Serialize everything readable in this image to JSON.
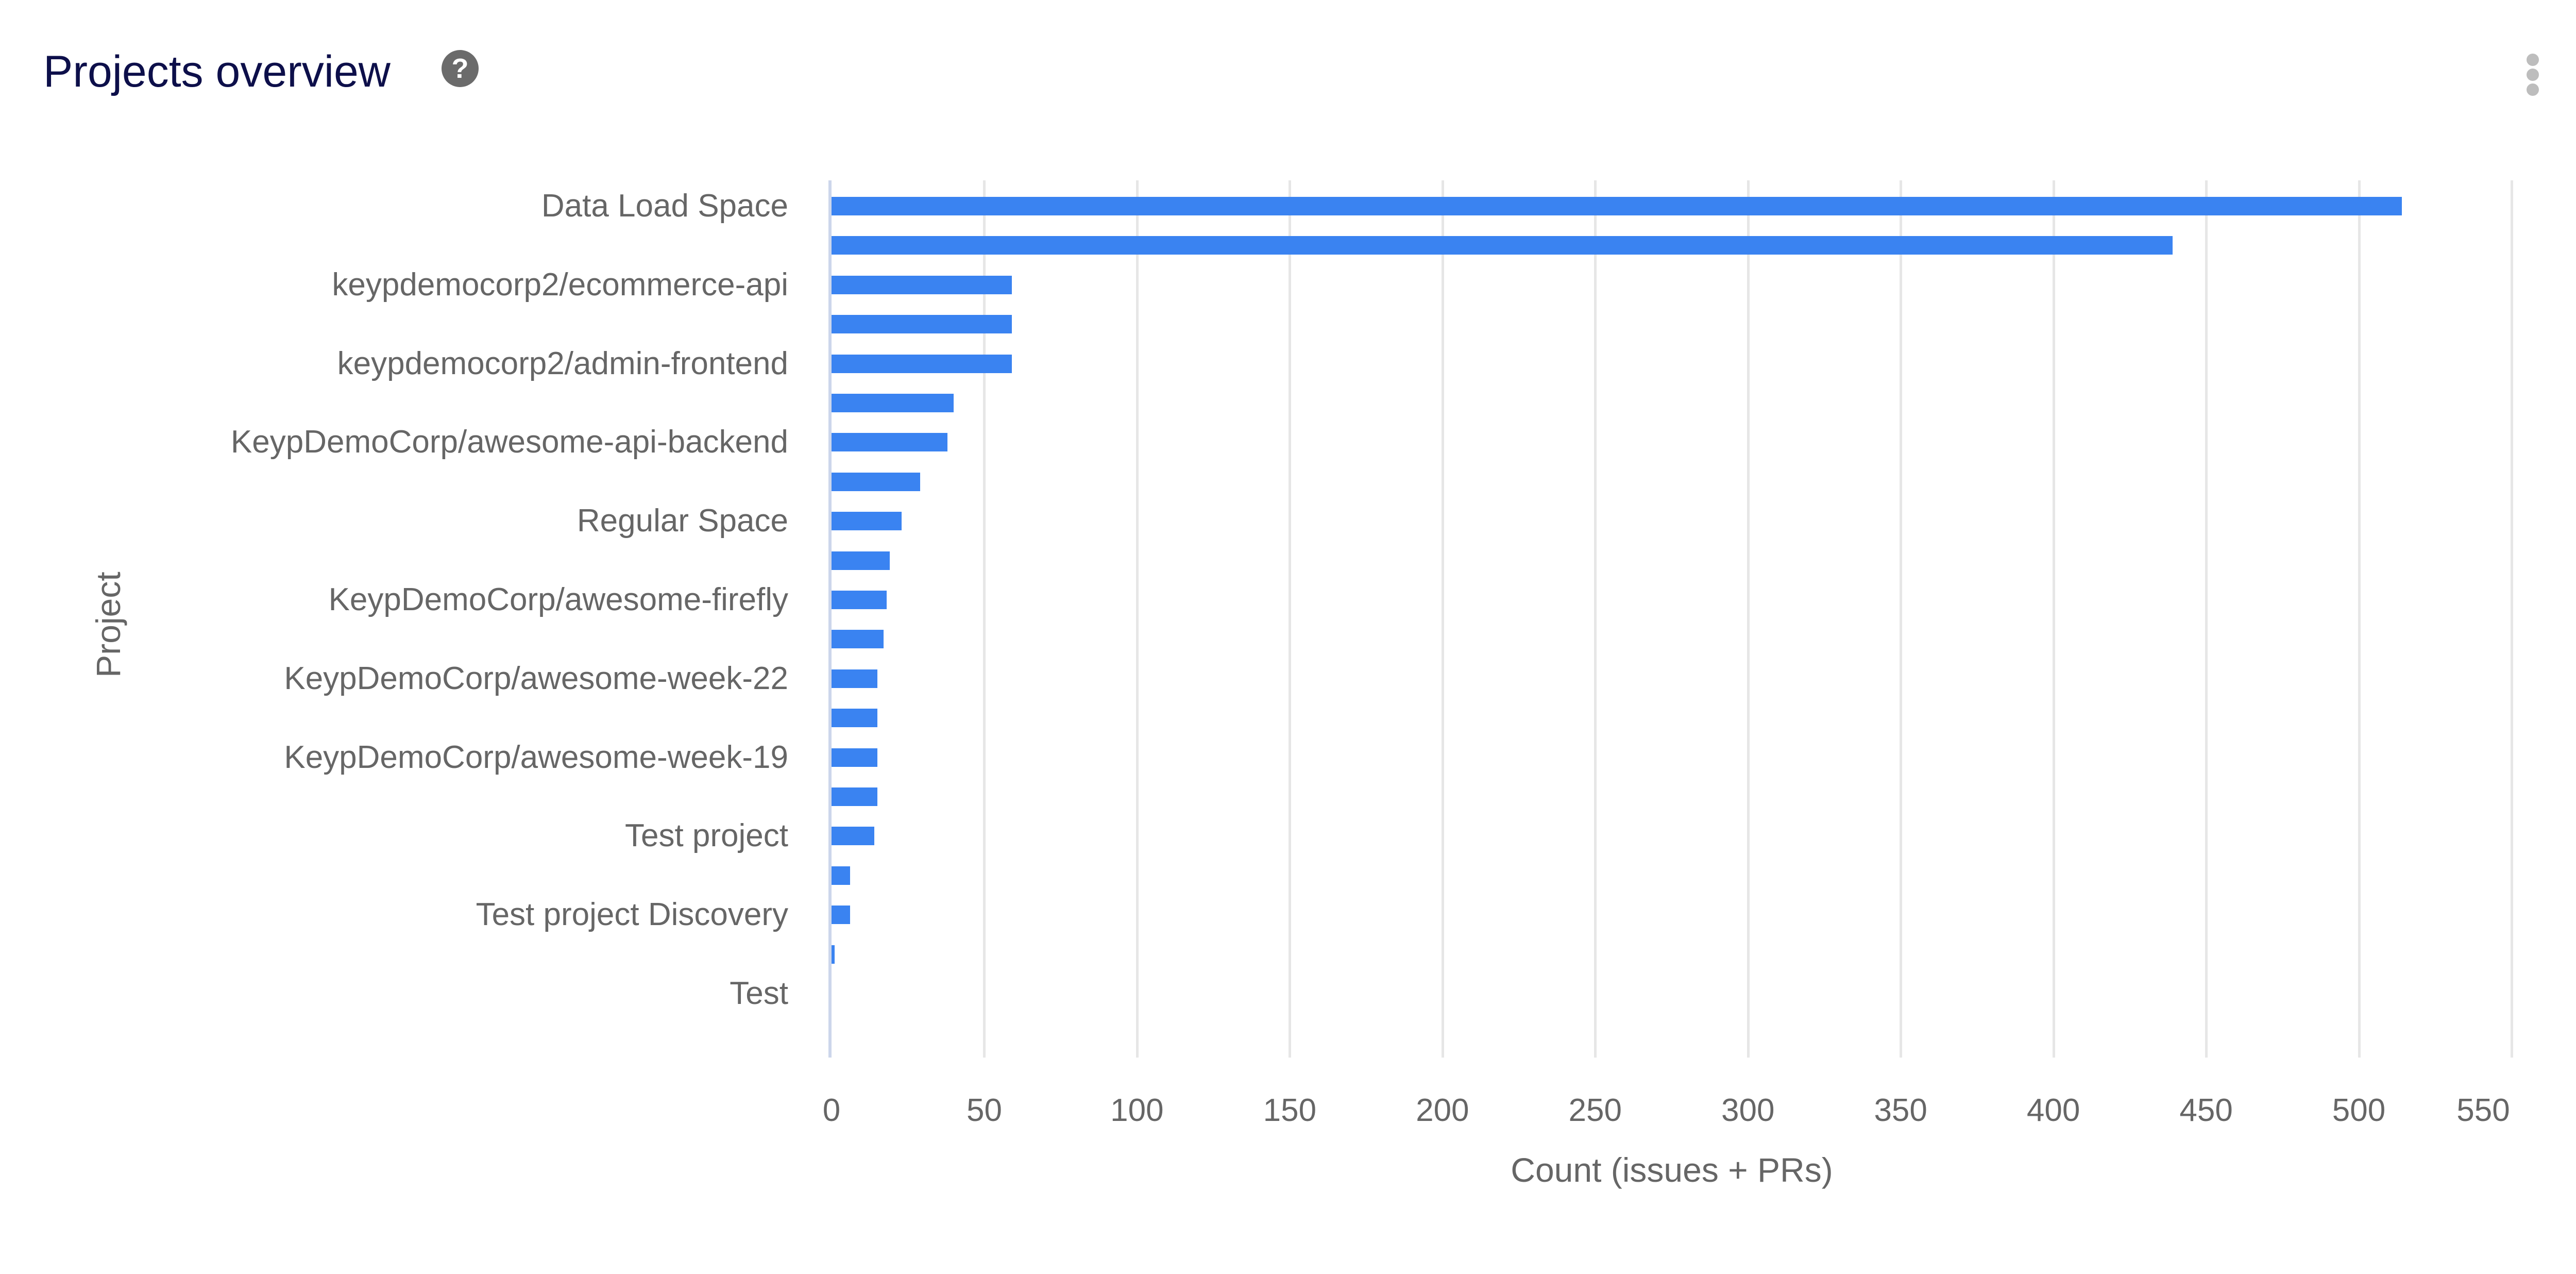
{
  "header": {
    "title": "Projects overview",
    "help_icon": "question-circle-icon",
    "menu_icon": "kebab-vertical-icon"
  },
  "colors": {
    "bar": "#3a83f1",
    "title": "#0d0f4a",
    "axis_text": "#666666",
    "gridline": "#e6e6e6"
  },
  "chart_data": {
    "type": "bar",
    "orientation": "horizontal",
    "title": "Projects overview",
    "xlabel": "Count (issues + PRs)",
    "ylabel": "Project",
    "xlim": [
      0,
      550
    ],
    "x_ticks": [
      "0",
      "50",
      "100",
      "150",
      "200",
      "250",
      "300",
      "350",
      "400",
      "450",
      "500",
      "550"
    ],
    "grid": true,
    "legend": null,
    "categories": [
      "Data Load Space",
      "",
      "keypdemocorp2/ecommerce-api",
      "",
      "keypdemocorp2/admin-frontend",
      "",
      "KeypDemoCorp/awesome-api-backend",
      "",
      "Regular Space",
      "",
      "KeypDemoCorp/awesome-firefly",
      "",
      "KeypDemoCorp/awesome-week-22",
      "",
      "KeypDemoCorp/awesome-week-19",
      "",
      "Test project",
      "",
      "Test project Discovery",
      "",
      "Test"
    ],
    "values": [
      514,
      439,
      59,
      59,
      59,
      40,
      38,
      29,
      23,
      19,
      18,
      17,
      15,
      15,
      15,
      15,
      14,
      6,
      6,
      1,
      0
    ],
    "note": "Labels shown on every other category; unlabeled categories are hidden by the axis due to space."
  }
}
